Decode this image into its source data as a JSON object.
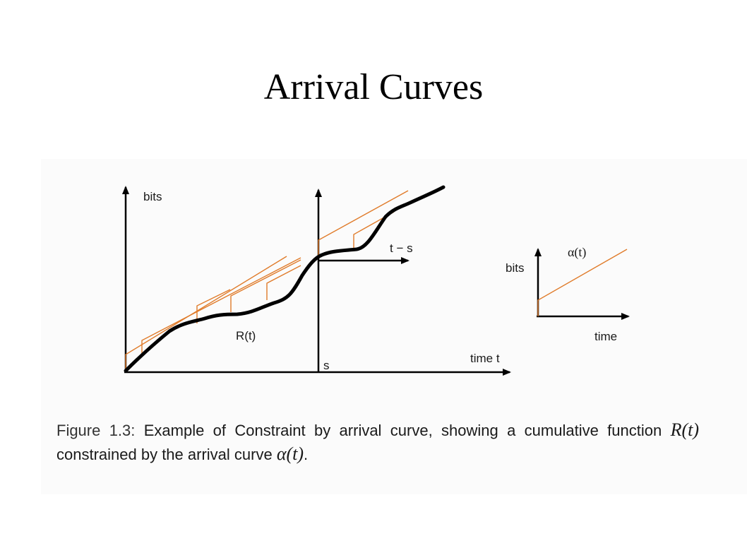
{
  "slide": {
    "title": "Arrival Curves"
  },
  "main_plot": {
    "y_axis_label": "bits",
    "x_axis_label": "time t",
    "s_label": "s",
    "shifted_axis_label": "t − s",
    "curve_label": "R(t)"
  },
  "inset_plot": {
    "y_axis_label": "bits",
    "x_axis_label": "time",
    "curve_label": "α(t)"
  },
  "caption": {
    "figure_label": "Figure 1.3:",
    "text_1": "Example of Constraint by arrival curve, showing a cumulative function",
    "math_r": "R(t)",
    "text_2": "constrained by the arrival curve",
    "math_alpha": "α(t)",
    "text_end": "."
  },
  "colors": {
    "cumulative_curve": "#000000",
    "arrival_curve": "#e07b2a",
    "axes": "#000000"
  }
}
